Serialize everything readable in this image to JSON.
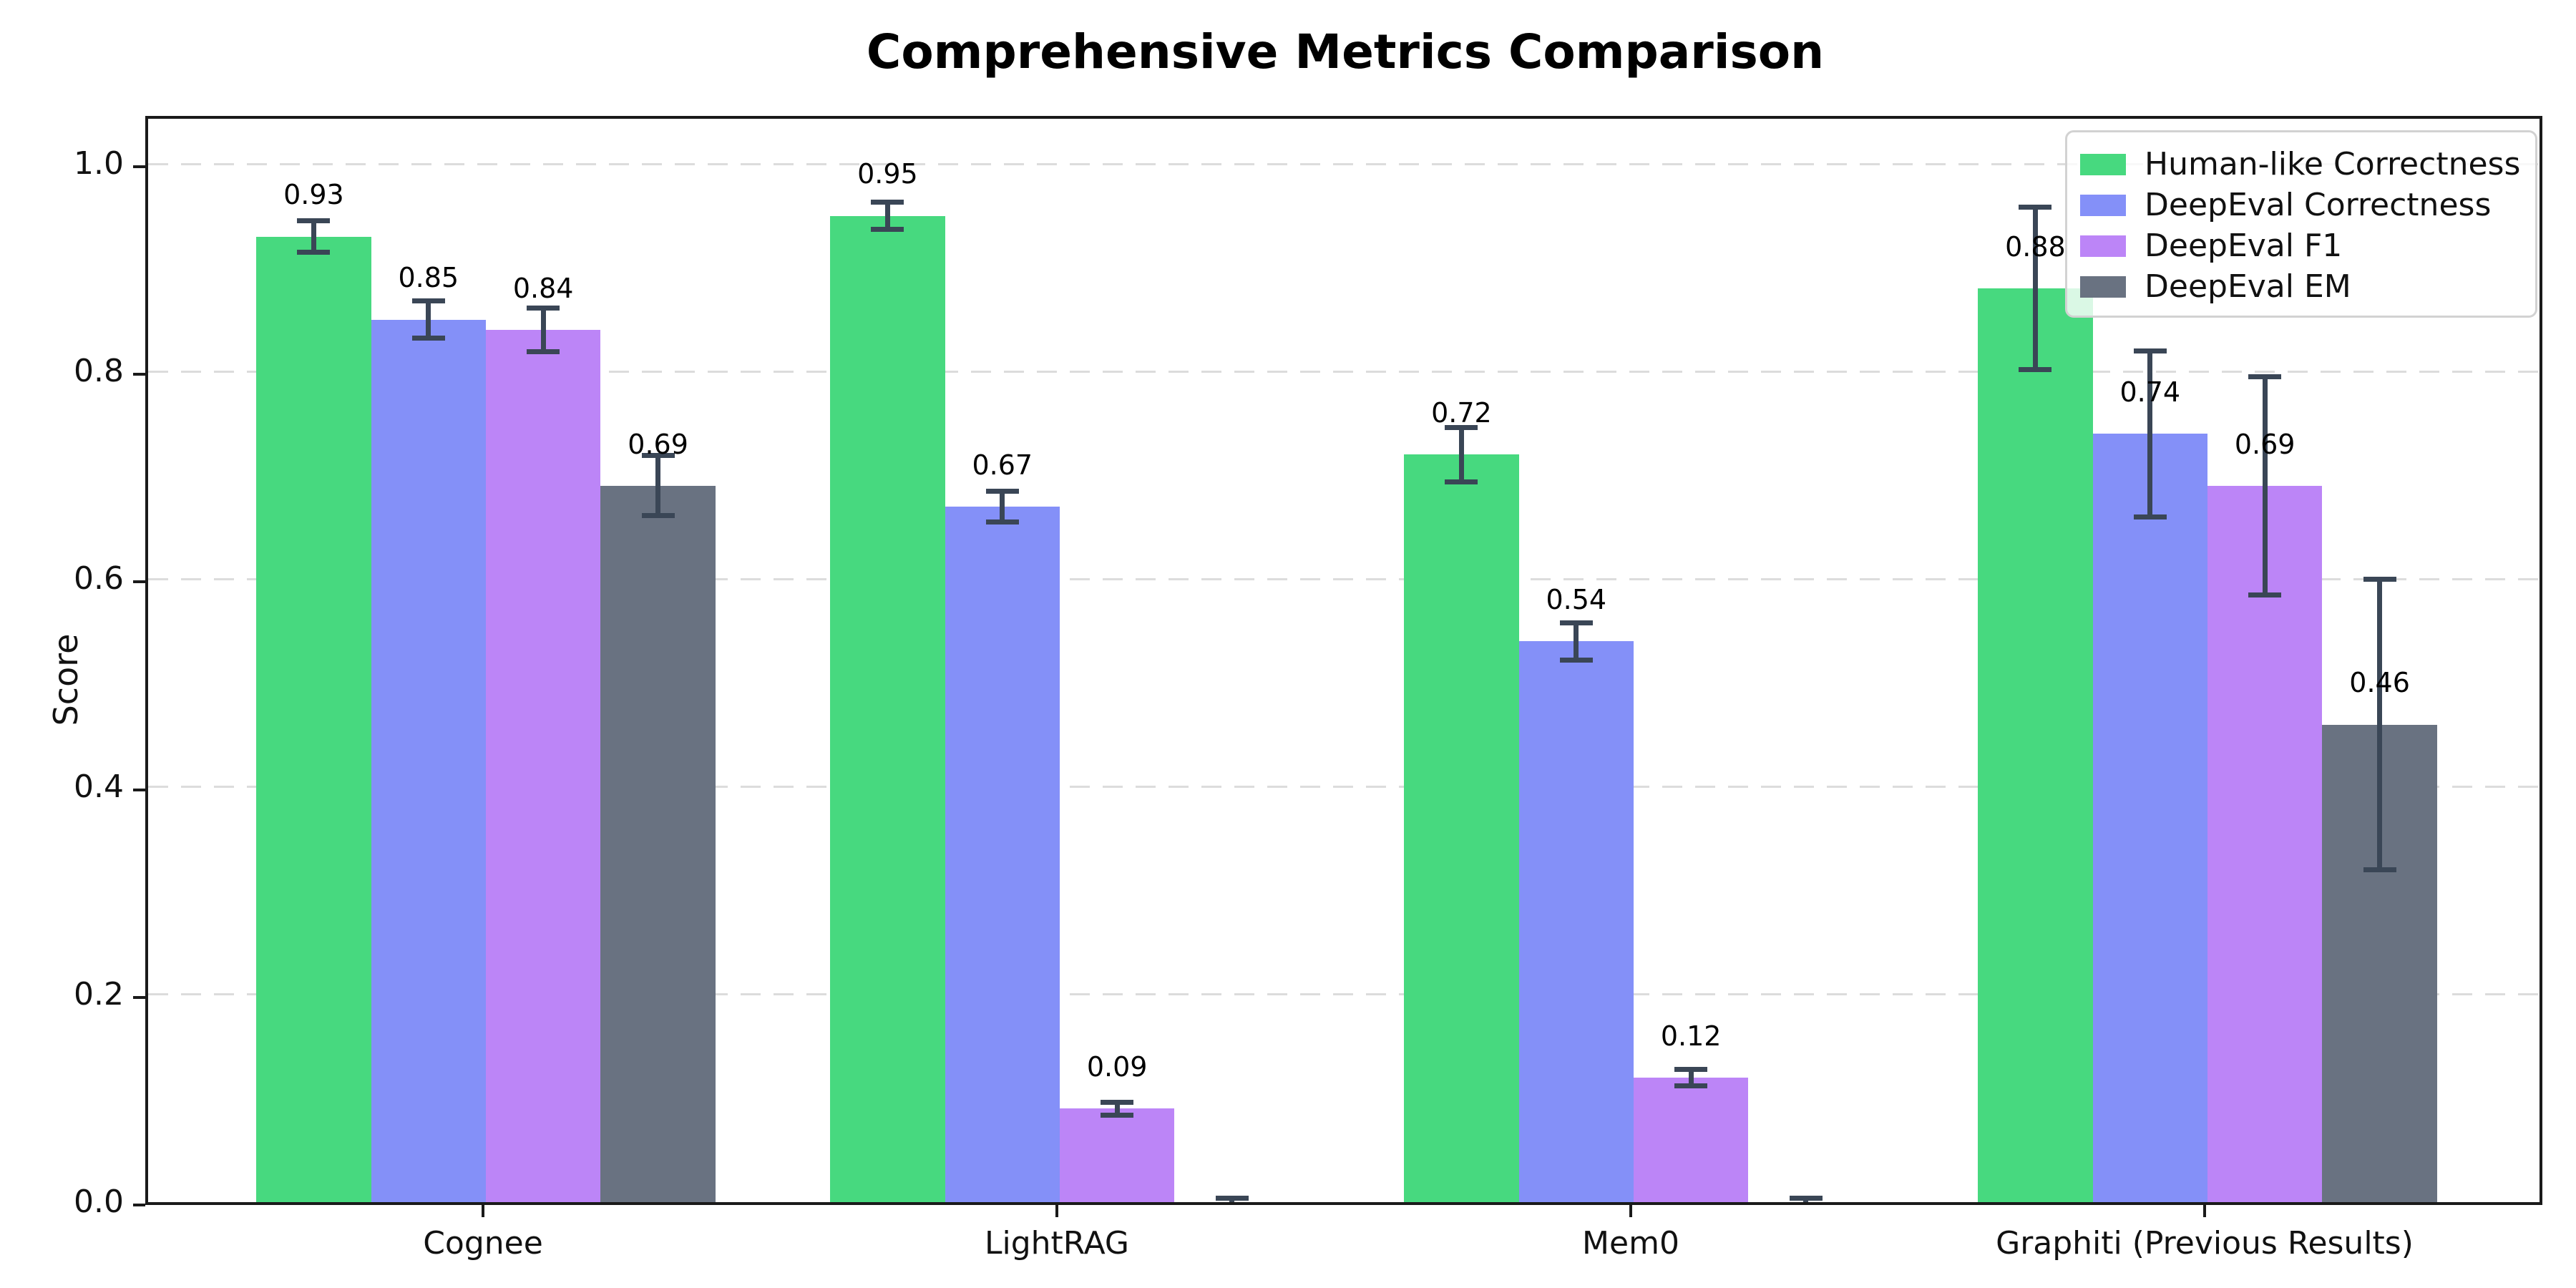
{
  "chart_data": {
    "type": "bar",
    "title": "Comprehensive Metrics Comparison",
    "xlabel": "",
    "ylabel": "Score",
    "categories": [
      "Cognee",
      "LightRAG",
      "Mem0",
      "Graphiti (Previous Results)"
    ],
    "series": [
      {
        "name": "Human-like Correctness",
        "color": "#47d97f",
        "values": [
          0.93,
          0.95,
          0.72,
          0.88
        ],
        "errors": [
          0.015,
          0.013,
          0.026,
          0.078
        ],
        "labels": [
          "0.93",
          "0.95",
          "0.72",
          "0.88"
        ]
      },
      {
        "name": "DeepEval Correctness",
        "color": "#8490f8",
        "values": [
          0.85,
          0.67,
          0.54,
          0.74
        ],
        "errors": [
          0.018,
          0.015,
          0.018,
          0.08
        ],
        "labels": [
          "0.85",
          "0.67",
          "0.54",
          "0.74"
        ]
      },
      {
        "name": "DeepEval F1",
        "color": "#bc85f7",
        "values": [
          0.84,
          0.09,
          0.12,
          0.69
        ],
        "errors": [
          0.021,
          0.006,
          0.008,
          0.105
        ],
        "labels": [
          "0.84",
          "0.09",
          "0.12",
          "0.69"
        ]
      },
      {
        "name": "DeepEval EM",
        "color": "#697281",
        "values": [
          0.69,
          0.0,
          0.0,
          0.46
        ],
        "errors": [
          0.029,
          0.004,
          0.004,
          0.14
        ],
        "labels": [
          "0.69",
          "",
          "",
          "0.46"
        ]
      }
    ],
    "yticks": [
      "0.0",
      "0.2",
      "0.4",
      "0.6",
      "0.8",
      "1.0"
    ],
    "ytick_values": [
      0.0,
      0.2,
      0.4,
      0.6,
      0.8,
      1.0
    ],
    "ylim": [
      0,
      1.05
    ],
    "grid": "horizontal dashed",
    "legend_position": "upper right",
    "error_bar_color": "#3a4656",
    "gridline_color": "#dcdcdc",
    "spine_color": "#1a1a1a"
  }
}
